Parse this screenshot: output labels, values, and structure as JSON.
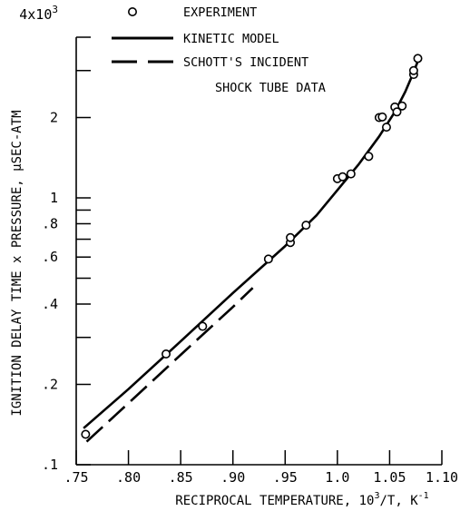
{
  "chart_data": {
    "type": "scatter",
    "title": "",
    "xlabel": "RECIPROCAL TEMPERATURE, 10",
    "xlabel_sup": "3",
    "xlabel_tail": "/T, K",
    "xlabel_tail_sup": "-1",
    "ylabel": "IGNITION DELAY TIME x PRESSURE, μSEC-ATM",
    "xlim": [
      0.75,
      1.1
    ],
    "ylim": [
      100,
      4000
    ],
    "yscale": "log",
    "grid": false,
    "legend_position": "top-right",
    "x_ticks": [
      {
        "value": 0.75,
        "label": ".75"
      },
      {
        "value": 0.8,
        "label": ".80"
      },
      {
        "value": 0.85,
        "label": ".85"
      },
      {
        "value": 0.9,
        "label": ".90"
      },
      {
        "value": 0.95,
        "label": ".95"
      },
      {
        "value": 1.0,
        "label": "1.0"
      },
      {
        "value": 1.05,
        "label": "1.05"
      },
      {
        "value": 1.1,
        "label": "1.10"
      }
    ],
    "y_ticks": [
      {
        "value": 100,
        "label": ".1"
      },
      {
        "value": 200,
        "label": ".2"
      },
      {
        "value": 400,
        "label": ".4"
      },
      {
        "value": 600,
        "label": ".6"
      },
      {
        "value": 800,
        "label": ".8"
      },
      {
        "value": 1000,
        "label": "1"
      },
      {
        "value": 2000,
        "label": "2"
      }
    ],
    "y_minor_ticks": [
      300,
      500,
      700,
      900,
      3000
    ],
    "y_top_label": {
      "value": 4000,
      "base": "4x10",
      "exp": "3"
    },
    "series": [
      {
        "name": "EXPERIMENT",
        "kind": "markers",
        "points": [
          {
            "x": 0.759,
            "y": 130
          },
          {
            "x": 0.836,
            "y": 260
          },
          {
            "x": 0.871,
            "y": 330
          },
          {
            "x": 0.934,
            "y": 590
          },
          {
            "x": 0.955,
            "y": 680
          },
          {
            "x": 0.955,
            "y": 710
          },
          {
            "x": 0.97,
            "y": 790
          },
          {
            "x": 1.0,
            "y": 1180
          },
          {
            "x": 1.005,
            "y": 1200
          },
          {
            "x": 1.013,
            "y": 1230
          },
          {
            "x": 1.03,
            "y": 1430
          },
          {
            "x": 1.04,
            "y": 2000
          },
          {
            "x": 1.043,
            "y": 2010
          },
          {
            "x": 1.047,
            "y": 1840
          },
          {
            "x": 1.055,
            "y": 2190
          },
          {
            "x": 1.057,
            "y": 2100
          },
          {
            "x": 1.062,
            "y": 2210
          },
          {
            "x": 1.073,
            "y": 2900
          },
          {
            "x": 1.073,
            "y": 3000
          },
          {
            "x": 1.077,
            "y": 3330
          }
        ]
      },
      {
        "name": "KINETIC MODEL",
        "kind": "solid",
        "points": [
          {
            "x": 0.757,
            "y": 137
          },
          {
            "x": 0.8,
            "y": 192
          },
          {
            "x": 0.85,
            "y": 290
          },
          {
            "x": 0.9,
            "y": 440
          },
          {
            "x": 0.95,
            "y": 660
          },
          {
            "x": 0.98,
            "y": 860
          },
          {
            "x": 1.0,
            "y": 1070
          },
          {
            "x": 1.02,
            "y": 1330
          },
          {
            "x": 1.04,
            "y": 1700
          },
          {
            "x": 1.055,
            "y": 2100
          },
          {
            "x": 1.065,
            "y": 2500
          },
          {
            "x": 1.072,
            "y": 2900
          },
          {
            "x": 1.077,
            "y": 3250
          }
        ]
      },
      {
        "name": "SCHOTT'S INCIDENT",
        "name_line2": "SHOCK TUBE DATA",
        "kind": "dashed",
        "points": [
          {
            "x": 0.76,
            "y": 122
          },
          {
            "x": 0.8,
            "y": 170
          },
          {
            "x": 0.85,
            "y": 258
          },
          {
            "x": 0.9,
            "y": 390
          },
          {
            "x": 0.919,
            "y": 460
          }
        ]
      }
    ]
  }
}
